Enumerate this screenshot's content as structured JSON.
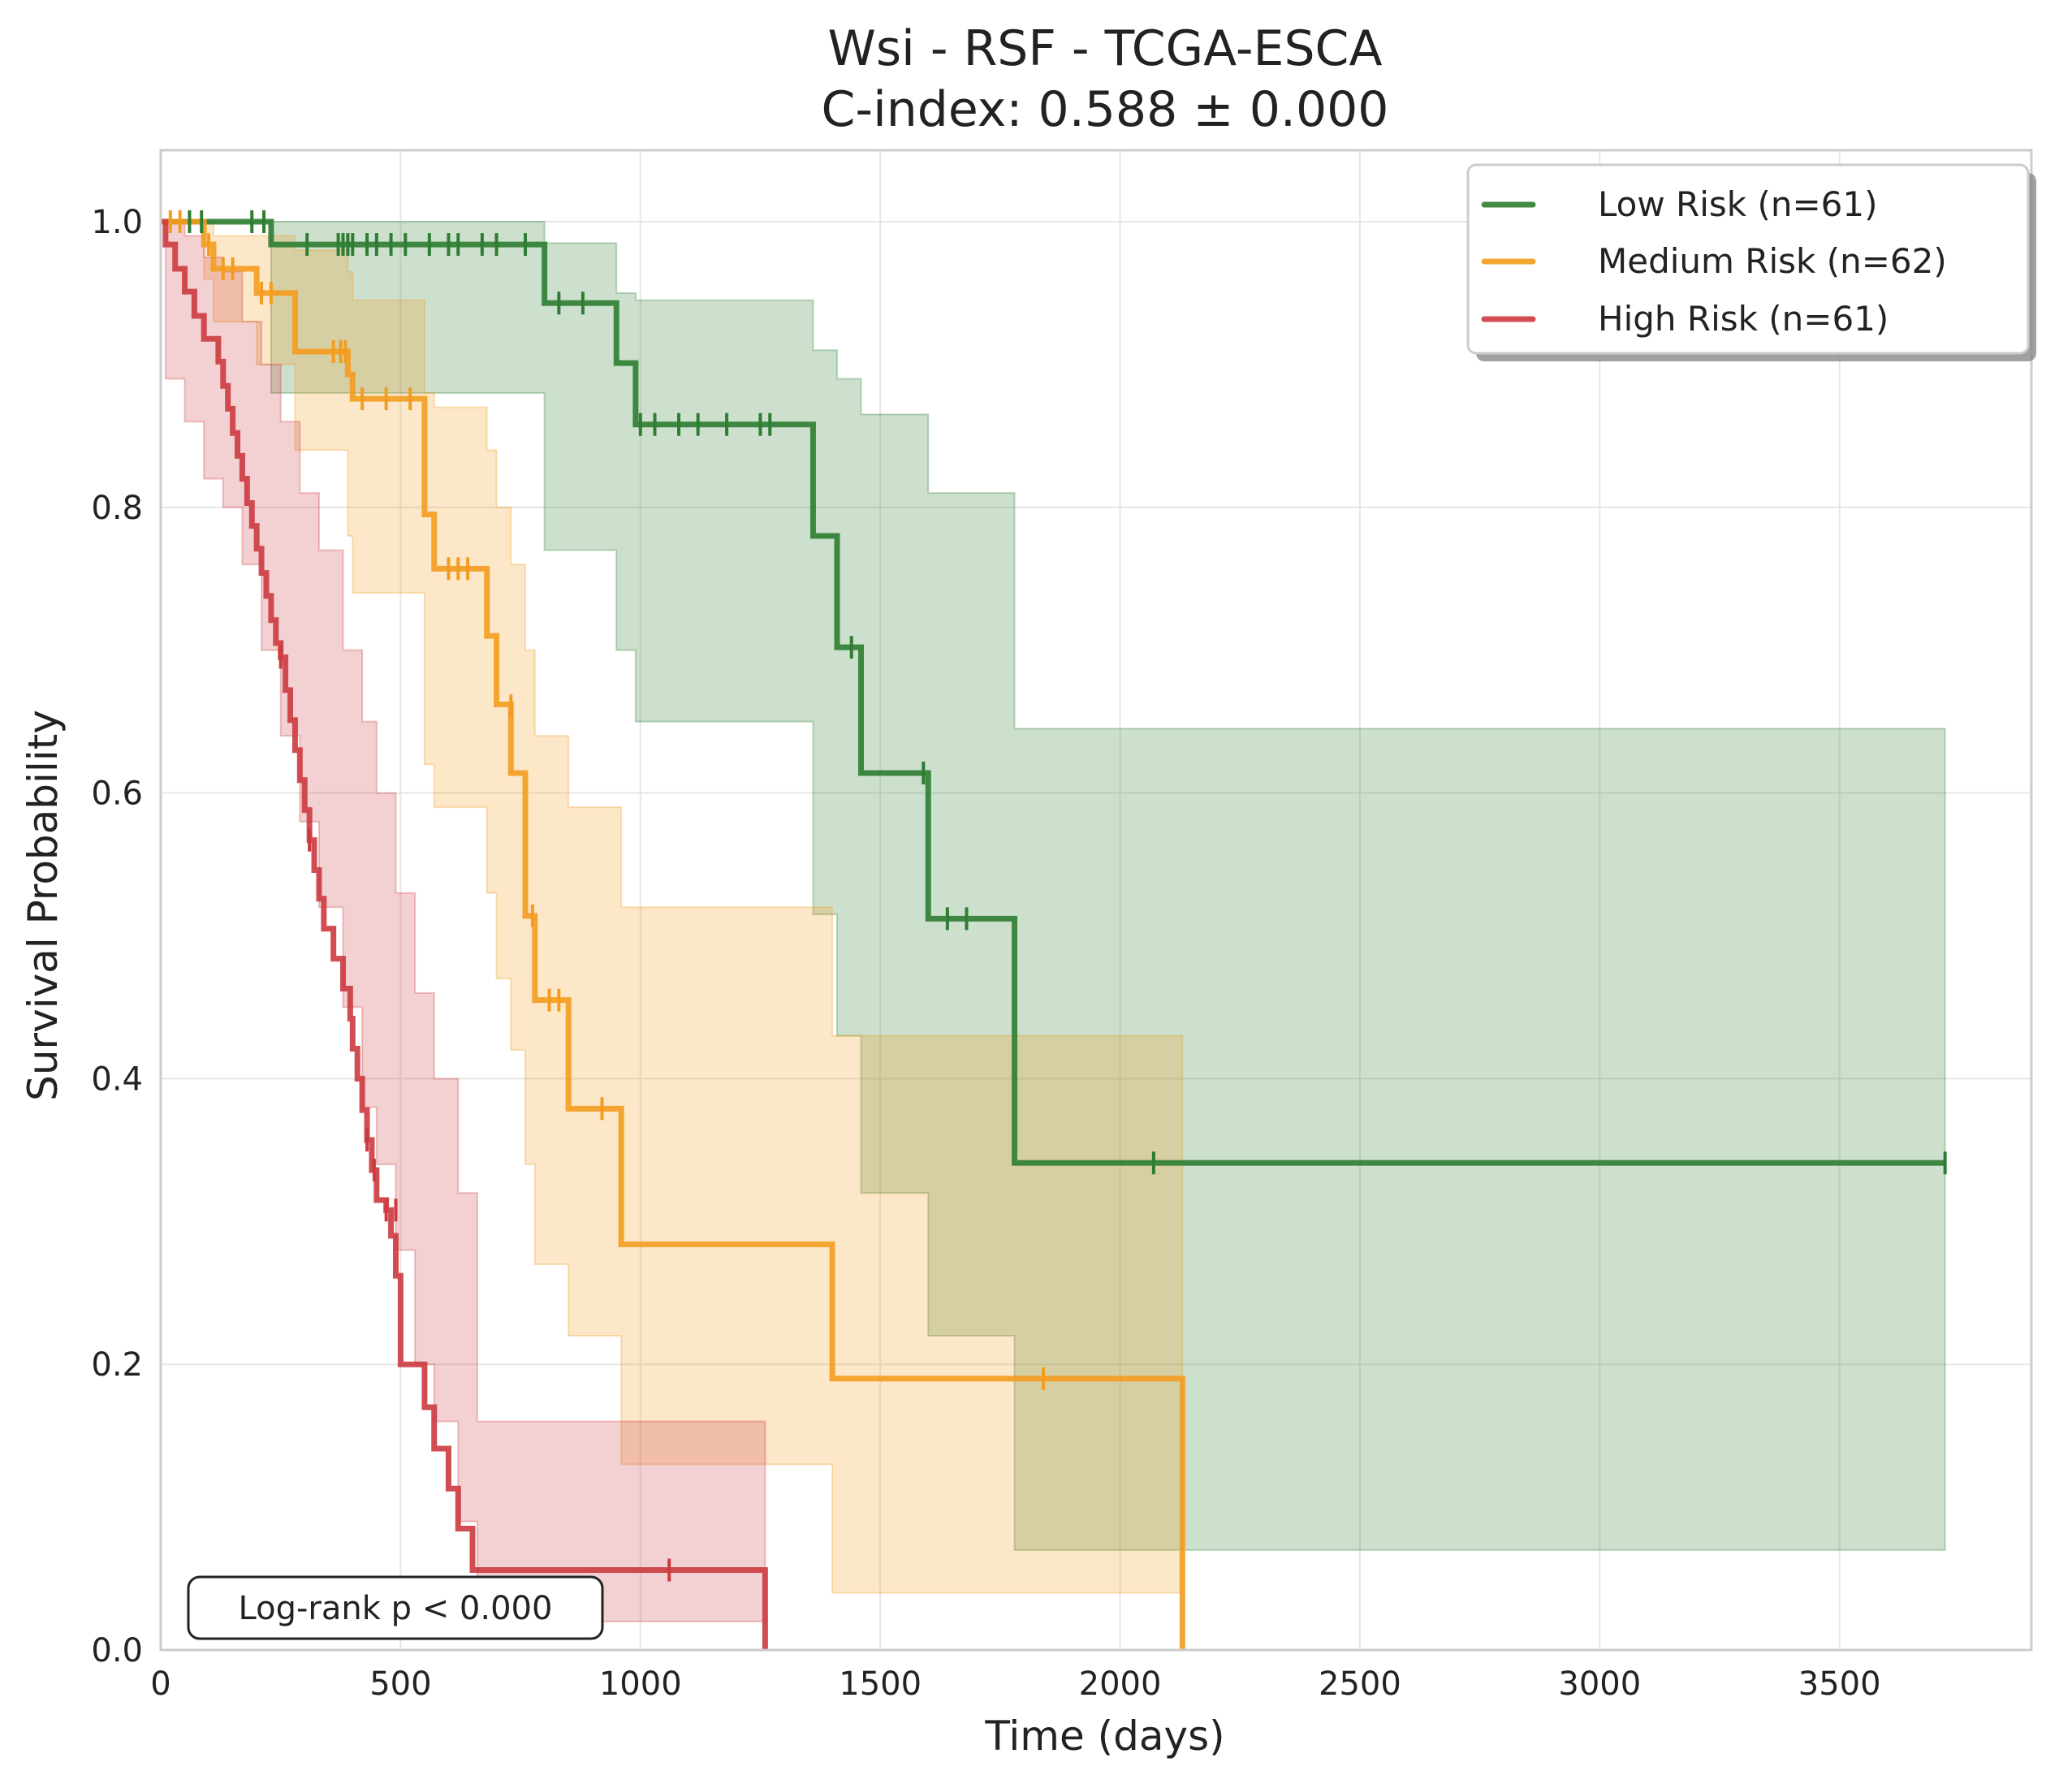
{
  "chart_data": {
    "type": "line",
    "title": "Wsi - RSF - TCGA-ESCA",
    "subtitle": "C-index: 0.588 ± 0.000",
    "xlabel": "Time (days)",
    "ylabel": "Survival Probability",
    "xlim": [
      0,
      3900
    ],
    "ylim": [
      0,
      1.05
    ],
    "x_ticks": [
      0,
      500,
      1000,
      1500,
      2000,
      2500,
      3000,
      3500
    ],
    "y_ticks": [
      0.0,
      0.2,
      0.4,
      0.6,
      0.8,
      1.0
    ],
    "x_tick_labels": [
      "0",
      "500",
      "1000",
      "1500",
      "2000",
      "2500",
      "3000",
      "3500"
    ],
    "y_tick_labels": [
      "0.0",
      "0.2",
      "0.4",
      "0.6",
      "0.8",
      "1.0"
    ],
    "grid": true,
    "legend_position": "top-right",
    "annotation": "Log-rank p < 0.000",
    "series": [
      {
        "name": "Low Risk (n=61)",
        "color": "#2e7d32",
        "steps": [
          [
            0,
            1.0
          ],
          [
            230,
            0.984
          ],
          [
            800,
            0.943
          ],
          [
            950,
            0.901
          ],
          [
            990,
            0.858
          ],
          [
            1360,
            0.78
          ],
          [
            1410,
            0.702
          ],
          [
            1460,
            0.614
          ],
          [
            1600,
            0.512
          ],
          [
            1780,
            0.341
          ],
          [
            3720,
            0.341
          ]
        ],
        "ci": [
          [
            0,
            1.0,
            1.0
          ],
          [
            230,
            1.0,
            0.88
          ],
          [
            800,
            0.985,
            0.77
          ],
          [
            950,
            0.95,
            0.7
          ],
          [
            990,
            0.945,
            0.65
          ],
          [
            1360,
            0.91,
            0.515
          ],
          [
            1410,
            0.89,
            0.43
          ],
          [
            1460,
            0.865,
            0.32
          ],
          [
            1600,
            0.81,
            0.22
          ],
          [
            1780,
            0.645,
            0.07
          ],
          [
            3720,
            0.645,
            0.07
          ]
        ],
        "censors": [
          [
            60,
            1.0
          ],
          [
            85,
            1.0
          ],
          [
            190,
            1.0
          ],
          [
            215,
            1.0
          ],
          [
            305,
            0.984
          ],
          [
            370,
            0.984
          ],
          [
            380,
            0.984
          ],
          [
            390,
            0.984
          ],
          [
            400,
            0.984
          ],
          [
            430,
            0.984
          ],
          [
            450,
            0.984
          ],
          [
            480,
            0.984
          ],
          [
            510,
            0.984
          ],
          [
            560,
            0.984
          ],
          [
            600,
            0.984
          ],
          [
            620,
            0.984
          ],
          [
            670,
            0.984
          ],
          [
            700,
            0.984
          ],
          [
            760,
            0.984
          ],
          [
            830,
            0.943
          ],
          [
            880,
            0.943
          ],
          [
            1000,
            0.858
          ],
          [
            1030,
            0.858
          ],
          [
            1080,
            0.858
          ],
          [
            1120,
            0.858
          ],
          [
            1180,
            0.858
          ],
          [
            1250,
            0.858
          ],
          [
            1270,
            0.858
          ],
          [
            1440,
            0.702
          ],
          [
            1590,
            0.614
          ],
          [
            1640,
            0.512
          ],
          [
            1680,
            0.512
          ],
          [
            2070,
            0.341
          ],
          [
            3720,
            0.341
          ]
        ]
      },
      {
        "name": "Medium Risk (n=62)",
        "color": "#f39c1f",
        "steps": [
          [
            0,
            1.0
          ],
          [
            90,
            0.984
          ],
          [
            110,
            0.967
          ],
          [
            200,
            0.95
          ],
          [
            280,
            0.909
          ],
          [
            390,
            0.893
          ],
          [
            400,
            0.876
          ],
          [
            550,
            0.795
          ],
          [
            570,
            0.757
          ],
          [
            680,
            0.71
          ],
          [
            700,
            0.662
          ],
          [
            730,
            0.614
          ],
          [
            760,
            0.514
          ],
          [
            780,
            0.455
          ],
          [
            850,
            0.379
          ],
          [
            960,
            0.284
          ],
          [
            1400,
            0.19
          ],
          [
            2130,
            0.0
          ]
        ],
        "ci": [
          [
            0,
            1.0,
            1.0
          ],
          [
            90,
            1.0,
            0.96
          ],
          [
            110,
            0.99,
            0.93
          ],
          [
            200,
            0.99,
            0.9
          ],
          [
            280,
            0.98,
            0.84
          ],
          [
            390,
            0.965,
            0.78
          ],
          [
            400,
            0.945,
            0.74
          ],
          [
            550,
            0.88,
            0.62
          ],
          [
            570,
            0.87,
            0.59
          ],
          [
            680,
            0.84,
            0.53
          ],
          [
            700,
            0.8,
            0.47
          ],
          [
            730,
            0.76,
            0.42
          ],
          [
            760,
            0.7,
            0.34
          ],
          [
            780,
            0.64,
            0.27
          ],
          [
            850,
            0.59,
            0.22
          ],
          [
            960,
            0.52,
            0.13
          ],
          [
            1400,
            0.43,
            0.04
          ],
          [
            2130,
            0.43,
            0.04
          ]
        ],
        "censors": [
          [
            20,
            1.0
          ],
          [
            40,
            1.0
          ],
          [
            100,
            0.984
          ],
          [
            130,
            0.967
          ],
          [
            150,
            0.967
          ],
          [
            210,
            0.95
          ],
          [
            230,
            0.95
          ],
          [
            360,
            0.909
          ],
          [
            375,
            0.909
          ],
          [
            385,
            0.909
          ],
          [
            420,
            0.876
          ],
          [
            470,
            0.876
          ],
          [
            520,
            0.876
          ],
          [
            600,
            0.757
          ],
          [
            620,
            0.757
          ],
          [
            640,
            0.757
          ],
          [
            730,
            0.661
          ],
          [
            775,
            0.514
          ],
          [
            810,
            0.455
          ],
          [
            830,
            0.455
          ],
          [
            920,
            0.379
          ],
          [
            1840,
            0.19
          ]
        ]
      },
      {
        "name": "High Risk (n=61)",
        "color": "#cc3a3f",
        "steps": [
          [
            0,
            1.0
          ],
          [
            10,
            0.984
          ],
          [
            30,
            0.967
          ],
          [
            50,
            0.951
          ],
          [
            70,
            0.934
          ],
          [
            90,
            0.918
          ],
          [
            120,
            0.902
          ],
          [
            130,
            0.885
          ],
          [
            140,
            0.869
          ],
          [
            150,
            0.852
          ],
          [
            160,
            0.836
          ],
          [
            170,
            0.82
          ],
          [
            180,
            0.803
          ],
          [
            190,
            0.787
          ],
          [
            200,
            0.771
          ],
          [
            210,
            0.754
          ],
          [
            220,
            0.738
          ],
          [
            230,
            0.721
          ],
          [
            240,
            0.705
          ],
          [
            250,
            0.695
          ],
          [
            260,
            0.672
          ],
          [
            270,
            0.651
          ],
          [
            280,
            0.63
          ],
          [
            290,
            0.609
          ],
          [
            300,
            0.588
          ],
          [
            310,
            0.567
          ],
          [
            320,
            0.546
          ],
          [
            330,
            0.526
          ],
          [
            340,
            0.505
          ],
          [
            360,
            0.484
          ],
          [
            380,
            0.463
          ],
          [
            395,
            0.442
          ],
          [
            400,
            0.421
          ],
          [
            410,
            0.4
          ],
          [
            420,
            0.378
          ],
          [
            430,
            0.357
          ],
          [
            440,
            0.336
          ],
          [
            450,
            0.315
          ],
          [
            470,
            0.308
          ],
          [
            480,
            0.29
          ],
          [
            490,
            0.262
          ],
          [
            500,
            0.2
          ],
          [
            550,
            0.17
          ],
          [
            570,
            0.141
          ],
          [
            600,
            0.113
          ],
          [
            620,
            0.085
          ],
          [
            650,
            0.056
          ],
          [
            1260,
            0.0
          ]
        ],
        "ci": [
          [
            0,
            1.0,
            1.0
          ],
          [
            10,
            1.0,
            0.89
          ],
          [
            50,
            0.99,
            0.86
          ],
          [
            90,
            0.975,
            0.82
          ],
          [
            130,
            0.965,
            0.8
          ],
          [
            170,
            0.93,
            0.76
          ],
          [
            210,
            0.9,
            0.7
          ],
          [
            250,
            0.86,
            0.64
          ],
          [
            290,
            0.81,
            0.58
          ],
          [
            330,
            0.77,
            0.52
          ],
          [
            380,
            0.7,
            0.45
          ],
          [
            420,
            0.65,
            0.38
          ],
          [
            450,
            0.6,
            0.34
          ],
          [
            490,
            0.53,
            0.28
          ],
          [
            530,
            0.46,
            0.2
          ],
          [
            570,
            0.4,
            0.16
          ],
          [
            620,
            0.32,
            0.09
          ],
          [
            660,
            0.16,
            0.02
          ],
          [
            1260,
            0.16,
            0.02
          ]
        ],
        "censors": [
          [
            250,
            0.695
          ],
          [
            310,
            0.567
          ],
          [
            430,
            0.357
          ],
          [
            445,
            0.336
          ],
          [
            470,
            0.308
          ],
          [
            490,
            0.308
          ],
          [
            1060,
            0.056
          ]
        ]
      }
    ]
  }
}
